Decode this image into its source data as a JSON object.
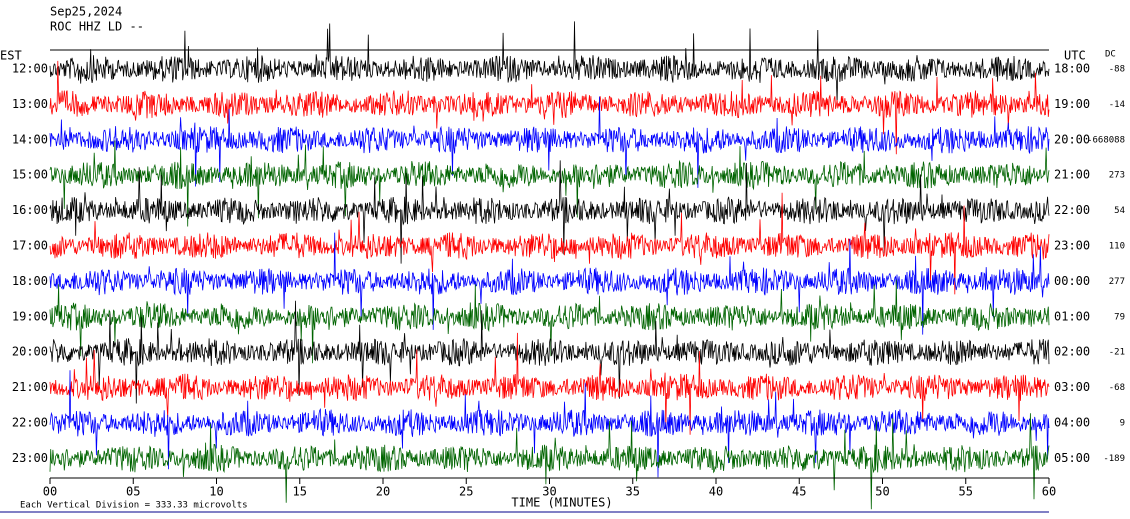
{
  "chart_data": {
    "type": "helicorder",
    "title": "Sep25,2024",
    "subtitle": "ROC HHZ LD --",
    "left_axis_label": "EST",
    "right_axis_label": "UTC",
    "dc_label": "DC",
    "x_label": "TIME (MINUTES)",
    "footer": "Each Vertical Division =  333.33 microvolts",
    "xlim": [
      0,
      60
    ],
    "xticks": [
      {
        "value": 0,
        "label": "00"
      },
      {
        "value": 5,
        "label": "05"
      },
      10,
      15,
      20,
      25,
      30,
      35,
      40,
      45,
      50,
      55,
      60
    ],
    "rows": [
      {
        "est": "12:00",
        "utc": "18:00",
        "dc": -88,
        "color": "#000000"
      },
      {
        "est": "13:00",
        "utc": "19:00",
        "dc": -14,
        "color": "#ff0000"
      },
      {
        "est": "14:00",
        "utc": "20:00",
        "dc": "-668088",
        "color": "#0000ff"
      },
      {
        "est": "15:00",
        "utc": "21:00",
        "dc": 273,
        "color": "#006400"
      },
      {
        "est": "16:00",
        "utc": "22:00",
        "dc": 54,
        "color": "#000000"
      },
      {
        "est": "17:00",
        "utc": "23:00",
        "dc": 110,
        "color": "#ff0000"
      },
      {
        "est": "18:00",
        "utc": "00:00",
        "dc": 277,
        "color": "#0000ff"
      },
      {
        "est": "19:00",
        "utc": "01:00",
        "dc": 79,
        "color": "#006400"
      },
      {
        "est": "20:00",
        "utc": "02:00",
        "dc": -21,
        "color": "#000000"
      },
      {
        "est": "21:00",
        "utc": "03:00",
        "dc": -68,
        "color": "#ff0000"
      },
      {
        "est": "22:00",
        "utc": "04:00",
        "dc": 9,
        "color": "#0000ff"
      },
      {
        "est": "23:00",
        "utc": "05:00",
        "dc": -189,
        "color": "#006400"
      }
    ]
  }
}
